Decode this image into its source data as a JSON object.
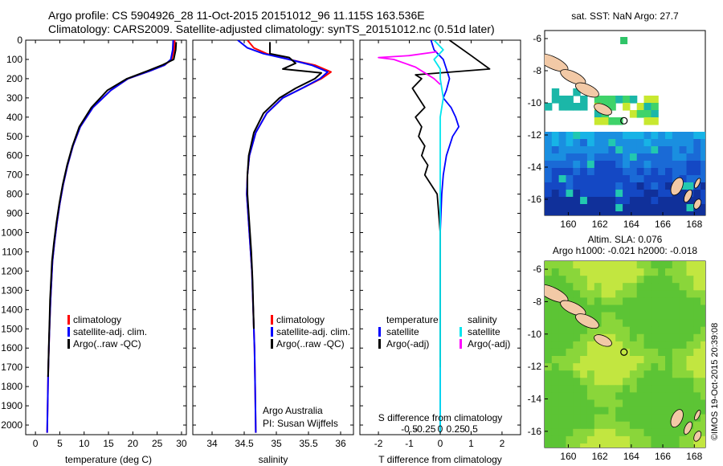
{
  "header": {
    "title_line1": "Argo profile: CS 5904926_28 11-Oct-2015 20151012_96 11.115S 163.536E",
    "title_line2": "Climatology: CARS2009. Satellite-adjusted climatology: synTS_20151012.nc (0.51d later)"
  },
  "colors": {
    "climatology": "#ff0000",
    "satellite": "#0000ff",
    "argo": "#000000",
    "satellite_salinity": "#00e5ee",
    "argo_salinity_adj": "#ff00ff",
    "land": "#f2c9a6"
  },
  "depth_axis": {
    "range": [
      0,
      2050
    ],
    "inverted": true,
    "ticks": [
      0,
      100,
      200,
      300,
      400,
      500,
      600,
      700,
      800,
      900,
      1000,
      1100,
      1200,
      1300,
      1400,
      1500,
      1600,
      1700,
      1800,
      1900,
      2000
    ]
  },
  "chart_data": [
    {
      "type": "line",
      "id": "temperature",
      "xlabel": "temperature (deg C)",
      "xlim": [
        -2,
        31
      ],
      "xticks": [
        0,
        5,
        10,
        15,
        20,
        25,
        30
      ],
      "legend": [
        "climatology",
        "satellite-adj. clim.",
        "Argo(..raw -QC)"
      ],
      "legend_position": "lower-left",
      "series": [
        {
          "name": "climatology",
          "color": "#ff0000",
          "x": [
            28.6,
            28.5,
            28.0,
            26.5,
            23.5,
            19.0,
            15.5,
            11.8,
            9.2,
            7.7,
            6.6,
            5.7,
            5.0,
            4.4,
            3.9,
            3.5,
            3.3,
            3.1,
            2.95,
            2.82,
            2.7,
            2.6,
            2.5,
            2.4
          ],
          "y": [
            0,
            50,
            100,
            130,
            160,
            200,
            260,
            350,
            450,
            550,
            650,
            750,
            850,
            950,
            1050,
            1150,
            1250,
            1350,
            1450,
            1550,
            1650,
            1750,
            1900,
            2040
          ]
        },
        {
          "name": "satellite-adj. clim.",
          "color": "#0000ff",
          "x": [
            28.3,
            28.2,
            27.8,
            26.5,
            23.5,
            19.0,
            15.5,
            11.8,
            9.2,
            7.7,
            6.6,
            5.7,
            5.0,
            4.4,
            3.9,
            3.5,
            3.3,
            3.1,
            2.95,
            2.82,
            2.7,
            2.6,
            2.5,
            2.4
          ],
          "y": [
            0,
            50,
            100,
            130,
            160,
            200,
            260,
            350,
            450,
            550,
            650,
            750,
            850,
            950,
            1050,
            1150,
            1250,
            1350,
            1450,
            1550,
            1650,
            1750,
            1900,
            2040
          ]
        },
        {
          "name": "Argo(..raw -QC)",
          "color": "#000000",
          "x": [
            28.9,
            28.8,
            28.4,
            26.0,
            23.0,
            18.8,
            14.8,
            11.5,
            9.0,
            7.6,
            6.5,
            5.6,
            4.9,
            4.3,
            3.8,
            3.4,
            3.2,
            3.0,
            2.9,
            2.78,
            2.68,
            2.58
          ],
          "y": [
            10,
            50,
            100,
            130,
            160,
            200,
            260,
            350,
            450,
            550,
            650,
            750,
            850,
            950,
            1050,
            1150,
            1250,
            1350,
            1450,
            1550,
            1650,
            1750
          ]
        }
      ]
    },
    {
      "type": "line",
      "id": "salinity",
      "xlabel": "salinity",
      "xlim": [
        33.7,
        36.2
      ],
      "xticks": [
        34,
        34.5,
        35,
        35.5,
        36
      ],
      "legend": [
        "climatology",
        "satellite-adj. clim.",
        "Argo(..raw -QC)"
      ],
      "legend_position": "lower-right",
      "annotations": [
        "Argo Australia",
        "PI: Susan Wijffels"
      ],
      "series": [
        {
          "name": "climatology",
          "color": "#ff0000",
          "x": [
            34.55,
            34.65,
            34.85,
            35.2,
            35.6,
            35.85,
            35.7,
            35.4,
            35.1,
            34.85,
            34.68,
            34.58,
            34.55,
            34.54,
            34.56,
            34.58,
            34.6,
            34.62,
            34.64,
            34.66,
            34.67,
            34.68
          ],
          "y": [
            0,
            40,
            70,
            100,
            130,
            165,
            200,
            250,
            300,
            380,
            480,
            600,
            700,
            800,
            900,
            1000,
            1100,
            1200,
            1400,
            1600,
            1800,
            2040
          ]
        },
        {
          "name": "satellite-adj. clim.",
          "color": "#0000ff",
          "x": [
            34.4,
            34.55,
            34.8,
            35.2,
            35.55,
            35.8,
            35.68,
            35.4,
            35.1,
            34.85,
            34.68,
            34.58,
            34.55,
            34.54,
            34.56,
            34.58,
            34.6,
            34.62,
            34.64,
            34.66,
            34.67,
            34.68
          ],
          "y": [
            0,
            40,
            70,
            100,
            130,
            165,
            200,
            250,
            300,
            380,
            480,
            600,
            700,
            800,
            900,
            1000,
            1100,
            1200,
            1400,
            1600,
            1800,
            2040
          ]
        },
        {
          "name": "Argo(..raw -QC)",
          "color": "#000000",
          "x": [
            34.9,
            34.9,
            35.2,
            35.3,
            35.1,
            35.7,
            35.6,
            35.3,
            35.05,
            34.8,
            34.65,
            34.57,
            34.55,
            34.55,
            34.57,
            34.59,
            34.61,
            34.63,
            34.65
          ],
          "y": [
            10,
            70,
            90,
            120,
            150,
            170,
            200,
            250,
            300,
            380,
            480,
            600,
            700,
            800,
            900,
            1000,
            1100,
            1250,
            1500
          ]
        }
      ]
    },
    {
      "type": "line",
      "id": "differences",
      "xlabel": "T difference from climatology",
      "xlabel2": "S difference from climatology",
      "xlim": [
        -2.6,
        2.6
      ],
      "xticks_T": [
        -2,
        -1,
        0,
        1,
        2
      ],
      "xticks_S_labels": [
        "-0.5",
        "-0.25",
        "0",
        "0.25",
        "0.5"
      ],
      "xticks_S_values": [
        -0.5,
        -0.25,
        0,
        0.25,
        0.5
      ],
      "legend_temperature_title": "temperature",
      "legend_salinity_title": "salinity",
      "legend_temperature": [
        "satellite",
        "Argo(-adj)"
      ],
      "legend_salinity": [
        "satellite",
        "Argo(-adj)"
      ],
      "series": [
        {
          "name": "satellite",
          "group": "temperature",
          "color": "#0000ff",
          "x": [
            -0.3,
            -0.2,
            0.1,
            0.2,
            0.3,
            0.2,
            0.1,
            0.35,
            0.5,
            0.6,
            0.4,
            0.2,
            0.1,
            0.05,
            0.0,
            0.0,
            0.0,
            0.0
          ],
          "y": [
            0,
            50,
            100,
            150,
            200,
            260,
            300,
            350,
            400,
            450,
            500,
            600,
            700,
            800,
            1000,
            1300,
            1700,
            2040
          ]
        },
        {
          "name": "Argo(-adj)",
          "group": "temperature",
          "color": "#000000",
          "x": [
            0.3,
            1.0,
            1.6,
            -0.8,
            -0.6,
            -0.9,
            -0.7,
            -0.5,
            -0.8,
            -0.6,
            -0.7,
            -0.5,
            -0.6,
            -0.4,
            -0.5,
            -0.3,
            -0.1,
            0.0,
            0.0
          ],
          "y": [
            0,
            80,
            150,
            180,
            200,
            250,
            300,
            350,
            400,
            450,
            500,
            550,
            600,
            650,
            700,
            750,
            800,
            1000,
            1700
          ]
        },
        {
          "name": "satellite",
          "group": "salinity",
          "color": "#00e5ee",
          "x": [
            -0.2,
            0.1,
            -0.2,
            0.0,
            0.0,
            0.1,
            0.0,
            0.0,
            0.0,
            0.0,
            0.0,
            0.0
          ],
          "y": [
            0,
            50,
            100,
            150,
            200,
            300,
            400,
            500,
            700,
            1000,
            1500,
            2040
          ]
        },
        {
          "name": "Argo(-adj)",
          "group": "salinity",
          "color": "#ff00ff",
          "x": [
            -0.1,
            -1.0,
            -2.0,
            -1.5,
            -0.8,
            -0.5,
            -0.2,
            0.0
          ],
          "y": [
            60,
            80,
            90,
            100,
            140,
            170,
            200,
            230
          ]
        }
      ]
    },
    {
      "type": "heatmap",
      "id": "sst_map",
      "title": "sat. SST: NaN Argo: 27.7",
      "xticks": [
        160,
        162,
        164,
        166,
        168
      ],
      "yticks": [
        -6,
        -8,
        -10,
        -12,
        -14,
        -16
      ],
      "xlim": [
        158.5,
        168.7
      ],
      "ylim": [
        -17.0,
        -5.5
      ],
      "profile_marker": {
        "lon": 163.536,
        "lat": -11.115
      }
    },
    {
      "type": "heatmap",
      "id": "sla_map",
      "title": "Altim. SLA: 0.076",
      "subtitle": "Argo h1000: -0.021 h2000: -0.018",
      "xticks": [
        160,
        162,
        164,
        166,
        168
      ],
      "yticks": [
        -6,
        -8,
        -10,
        -12,
        -14,
        -16
      ],
      "xlim": [
        158.5,
        168.7
      ],
      "ylim": [
        -17.0,
        -5.5
      ],
      "profile_marker": {
        "lon": 163.536,
        "lat": -11.115
      }
    }
  ],
  "footer": {
    "credit": "©IMOS 19-Oct-2015 20:39:08"
  }
}
